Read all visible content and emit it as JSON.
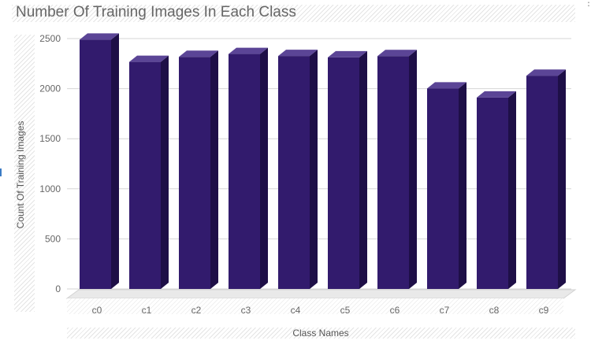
{
  "chart_data": {
    "type": "bar",
    "title": "Number Of Training Images In Each Class",
    "xlabel": "Class Names",
    "ylabel": "Count Of Training Images",
    "categories": [
      "c0",
      "c1",
      "c2",
      "c3",
      "c4",
      "c5",
      "c6",
      "c7",
      "c8",
      "c9"
    ],
    "values": [
      2489,
      2267,
      2317,
      2346,
      2326,
      2312,
      2325,
      2002,
      1911,
      2129
    ],
    "yticks": [
      0,
      500,
      1000,
      1500,
      2000,
      2500
    ],
    "ylim": [
      0,
      2500
    ],
    "grid": true,
    "legend": "none",
    "style": "3d-column",
    "colors": {
      "front": "#321B6D",
      "top": "#5B4596",
      "side": "#1E0F47"
    }
  }
}
